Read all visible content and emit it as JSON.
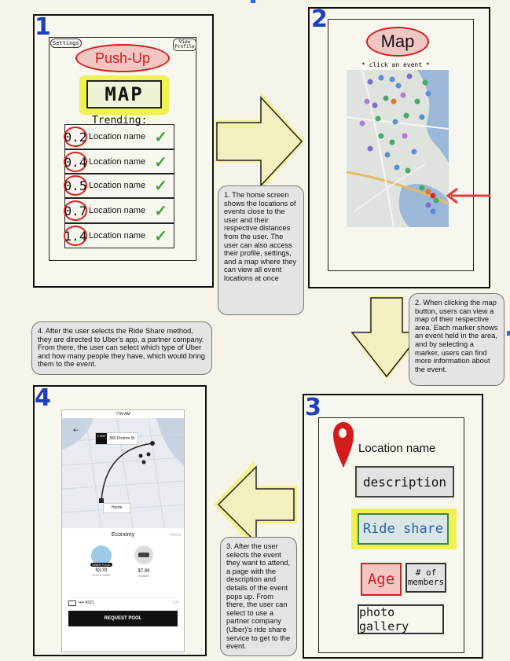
{
  "panel1": {
    "number": "1",
    "settings": "Settings",
    "view_profile": "View Profile",
    "app_name": "Push-Up",
    "map_button": "MAP",
    "trending": "Trending:",
    "rows": [
      {
        "distance": "0.2",
        "name": "Location name"
      },
      {
        "distance": "0.4",
        "name": "Location name"
      },
      {
        "distance": "0.5",
        "name": "Location name"
      },
      {
        "distance": "0.7",
        "name": "Location name"
      },
      {
        "distance": "1.4",
        "name": "Location name"
      }
    ]
  },
  "panel2": {
    "number": "2",
    "title": "Map",
    "hint": "* click an event *"
  },
  "panel3": {
    "number": "3",
    "location": "Location name",
    "description": "description",
    "ride_share": "Ride share",
    "age": "Age",
    "members": "# of members",
    "gallery": "photo gallery"
  },
  "panel4": {
    "number": "4",
    "time": "7:56 AM",
    "destination": "360 Drumm St",
    "destination_eta": "2 MIN",
    "home": "Home",
    "economy": "Economy",
    "premium_tab": "Premi",
    "pool_label": "UBER POOL",
    "pool_price": "$3.33",
    "pool_time": "8:12-8:16am",
    "x_price": "$7.89",
    "x_time": "8:05am",
    "card": "•••• 4321",
    "seats": "1-4",
    "request": "REQUEST POOL"
  },
  "notes": {
    "n1": "1. The home screen shows the locations of events close to the user and their respective distances from the user. The user can also access their profile, settings, and a map where they can view all event locations at once",
    "n2": "2. When clicking the map button, users can view a map of their respective area. Each marker shows an event held in the area, and by selecting a marker, users can find more information about the event.",
    "n3": "3. After the user selects the event they want to attend, a page with the description and details of the event pops up. From there, the user can select to use a partner company (Uber)'s ride share service to get to the event.",
    "n4": "4. After the user selects the Ride Share method, they are directed to Uber's app, a partner company. From there, the user can select which type of Uber and how many people they have, which would bring them to the event."
  },
  "colors": {
    "accent_red": "#d21b1b",
    "highlight_yellow": "#eef03a",
    "arrow_fill": "#f3f0c0",
    "number_blue": "#1d3fbf",
    "check_green": "#3aa93a"
  }
}
